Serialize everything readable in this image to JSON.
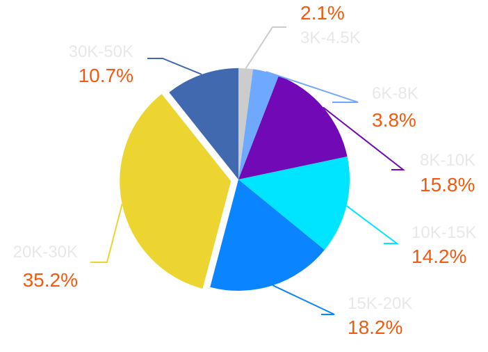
{
  "chart_data": {
    "type": "pie",
    "title": "",
    "categories": [
      "3K-4.5K",
      "6K-8K",
      "8K-10K",
      "10K-15K",
      "15K-20K",
      "20K-30K",
      "30K-50K"
    ],
    "values": [
      2.1,
      3.8,
      15.8,
      14.2,
      18.2,
      35.2,
      10.7
    ],
    "percent_labels": [
      "2.1%",
      "3.8%",
      "15.8%",
      "14.2%",
      "18.2%",
      "35.2%",
      "10.7%"
    ],
    "colors": [
      "#cccccc",
      "#6fa8ff",
      "#7209b7",
      "#00e5ff",
      "#0a84ff",
      "#ecd530",
      "#4169b0"
    ],
    "label_color": "#e8e8e8",
    "percent_color": "#f25a0f",
    "exploded_slice": "20K-30K"
  }
}
